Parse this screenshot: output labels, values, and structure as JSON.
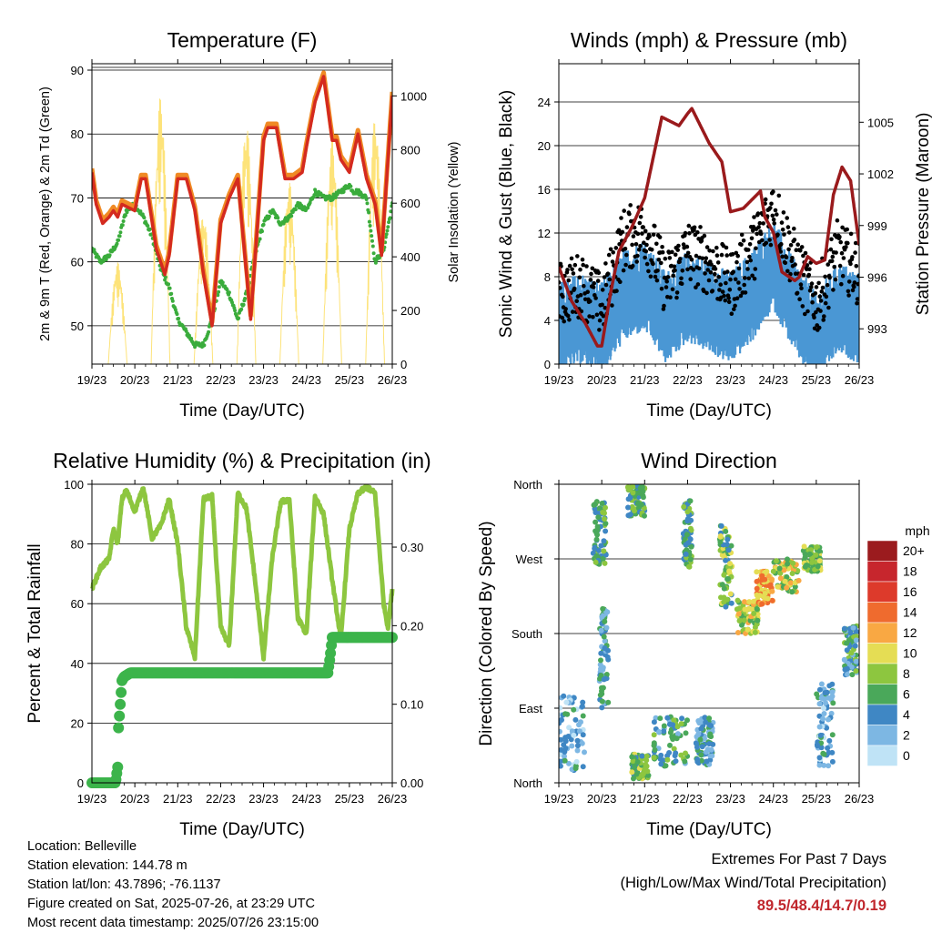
{
  "colors": {
    "temp2m": "#f08a24",
    "temp9m": "#d42a1f",
    "dew": "#3aac3c",
    "solar": "#fde37a",
    "wind": "#4a97d4",
    "gust": "#000000",
    "pressure": "#9a1a1c",
    "rh": "#8dc63f",
    "precip": "#3cb44b",
    "extremes": "#c0272d"
  },
  "chart_data": [
    {
      "type": "line",
      "title": "Temperature (F)",
      "xlabel": "Time (Day/UTC)",
      "ylabel": "2m & 9m T (Red, Orange) & 2m Td (Green)",
      "ylabel_right": "Solar Insolation (Yellow)",
      "x_ticks": [
        "19/23",
        "20/23",
        "21/23",
        "22/23",
        "23/23",
        "24/23",
        "25/23",
        "26/23"
      ],
      "ylim": [
        44,
        91
      ],
      "y_ticks": [
        50,
        60,
        70,
        80,
        90
      ],
      "y2lim": [
        0,
        1120
      ],
      "y2_ticks": [
        0,
        200,
        400,
        600,
        800,
        1000
      ],
      "grid": "horizontal",
      "series": [
        {
          "key": "temp9m",
          "x_days": [
            0,
            0.1,
            0.25,
            0.4,
            0.5,
            0.6,
            0.7,
            1.0,
            1.15,
            1.25,
            1.5,
            1.7,
            1.8,
            2.0,
            2.2,
            2.4,
            2.6,
            2.8,
            3.0,
            3.2,
            3.4,
            3.7,
            4.0,
            4.1,
            4.3,
            4.5,
            4.7,
            4.9,
            5.0,
            5.2,
            5.4,
            5.6,
            5.7,
            5.8,
            6.0,
            6.1,
            6.2,
            6.4,
            6.6,
            6.75,
            7.0
          ],
          "values": [
            74,
            69,
            66,
            67,
            68,
            67,
            69,
            68,
            73,
            73,
            62,
            58,
            61,
            73,
            73,
            68,
            58,
            50,
            66,
            70,
            73,
            51,
            79,
            81,
            81,
            73,
            73,
            74,
            78,
            85,
            89,
            79,
            79,
            76,
            74,
            77,
            80,
            73,
            69,
            61,
            86
          ]
        },
        {
          "key": "dew",
          "x_days": [
            0,
            0.2,
            0.4,
            0.6,
            0.8,
            1.0,
            1.2,
            1.4,
            1.6,
            1.8,
            2.0,
            2.2,
            2.4,
            2.6,
            2.8,
            3.0,
            3.2,
            3.4,
            3.6,
            3.8,
            4.0,
            4.2,
            4.4,
            4.6,
            4.8,
            5.0,
            5.2,
            5.4,
            5.6,
            5.8,
            6.0,
            6.1,
            6.2,
            6.4,
            6.6,
            6.8,
            7.0
          ],
          "values": [
            62,
            60,
            61,
            63,
            68,
            69,
            67,
            64,
            59,
            56,
            51,
            49,
            47,
            47,
            51,
            57,
            55,
            51,
            55,
            61,
            66,
            68,
            66,
            67,
            69,
            68,
            71,
            70,
            70,
            71,
            72,
            71,
            71,
            70,
            60,
            62,
            69
          ]
        },
        {
          "key": "solar",
          "x_days": [
            1.0,
            1.35,
            1.8,
            2.0,
            2.3,
            2.6,
            3.0,
            3.3,
            3.6,
            4.0,
            4.3,
            4.6,
            5.0,
            5.3,
            5.6,
            6.0,
            6.3,
            6.6,
            6.78
          ],
          "values": [
            0,
            600,
            0,
            0,
            1000,
            0,
            0,
            900,
            0,
            0,
            500,
            0,
            0,
            400,
            0,
            0,
            950,
            0,
            600
          ]
        }
      ]
    },
    {
      "type": "line",
      "title": "Winds (mph) & Pressure (mb)",
      "xlabel": "Time (Day/UTC)",
      "ylabel": "Sonic Wind & Gust (Blue, Black)",
      "ylabel_right": "Station Pressure (Maroon)",
      "x_ticks": [
        "19/23",
        "20/23",
        "21/23",
        "22/23",
        "23/23",
        "24/23",
        "25/23",
        "26/23"
      ],
      "ylim": [
        0,
        27.5
      ],
      "y_ticks": [
        0,
        4,
        8,
        12,
        16,
        20,
        24
      ],
      "y2lim": [
        990.95,
        1008.4
      ],
      "y2_ticks": [
        993,
        996,
        999,
        1002,
        1005
      ],
      "grid": "horizontal",
      "series": [
        {
          "key": "wind",
          "x_days": [
            0,
            0.5,
            1.0,
            1.5,
            2.0,
            2.5,
            3.0,
            3.5,
            4.0,
            4.5,
            5.0,
            5.5,
            6.0,
            6.5,
            7.0
          ],
          "values": [
            3,
            4,
            3,
            6,
            7,
            4,
            6,
            5,
            4,
            6,
            9,
            5,
            2,
            5,
            4
          ]
        },
        {
          "key": "gust",
          "x_days": [
            0,
            0.5,
            1.0,
            1.5,
            2.0,
            2.5,
            3.0,
            3.5,
            4.0,
            4.5,
            5.0,
            5.5,
            6.0,
            6.5,
            7.0
          ],
          "values": [
            6,
            7,
            5,
            11,
            12,
            7,
            10,
            9,
            7,
            10,
            14,
            9,
            5,
            10,
            8
          ]
        },
        {
          "key": "pressure",
          "x_days": [
            0,
            0.3,
            0.6,
            0.9,
            1.0,
            1.2,
            1.4,
            1.7,
            2.0,
            2.4,
            2.8,
            3.0,
            3.1,
            3.3,
            3.5,
            3.8,
            4.0,
            4.3,
            4.7,
            4.8,
            5.0,
            5.2,
            5.5,
            5.6,
            5.8,
            6.0,
            6.2,
            6.4,
            6.6,
            6.8,
            7.0
          ],
          "values": [
            996.6,
            994.6,
            993.4,
            992.0,
            992.0,
            995.0,
            997.5,
            998.9,
            1000.6,
            1005.3,
            1004.8,
            1005.5,
            1005.8,
            1004.8,
            1003.8,
            1002.7,
            999.8,
            1000.0,
            1001.0,
            999.5,
            998.6,
            996.3,
            995.8,
            996.0,
            997.2,
            996.8,
            997.0,
            1000.8,
            1002.4,
            1001.6,
            997.9
          ]
        }
      ]
    },
    {
      "type": "line",
      "title": "Relative Humidity (%) & Precipitation (in)",
      "xlabel": "Time (Day/UTC)",
      "ylabel": "Percent & Total Rainfall",
      "x_ticks": [
        "19/23",
        "20/23",
        "21/23",
        "22/23",
        "23/23",
        "24/23",
        "25/23",
        "26/23"
      ],
      "ylim": [
        0,
        100
      ],
      "y_ticks": [
        0,
        20,
        40,
        60,
        80,
        100
      ],
      "y2lim": [
        0,
        0.38
      ],
      "y2_ticks": [
        "0.00",
        "0.10",
        "0.20",
        "0.30"
      ],
      "grid": "horizontal",
      "series": [
        {
          "key": "rh",
          "x_days": [
            0,
            0.2,
            0.4,
            0.5,
            0.6,
            0.7,
            0.8,
            1.0,
            1.2,
            1.4,
            1.6,
            1.8,
            2.0,
            2.2,
            2.4,
            2.6,
            2.8,
            3.0,
            3.2,
            3.4,
            3.6,
            3.8,
            4.0,
            4.2,
            4.4,
            4.6,
            4.8,
            5.0,
            5.2,
            5.4,
            5.6,
            5.8,
            6.0,
            6.2,
            6.4,
            6.6,
            6.8,
            6.9,
            7.0
          ],
          "values": [
            65,
            72,
            75,
            85,
            80,
            95,
            98,
            91,
            99,
            82,
            86,
            95,
            80,
            52,
            42,
            95,
            96,
            52,
            46,
            97,
            92,
            68,
            42,
            75,
            94,
            95,
            55,
            50,
            96,
            90,
            68,
            48,
            85,
            97,
            99,
            97,
            60,
            52,
            65
          ]
        },
        {
          "key": "precip",
          "x_days": [
            0,
            0.55,
            0.6,
            0.62,
            0.66,
            0.7,
            0.75,
            0.9,
            5.5,
            5.55,
            5.6,
            7.0
          ],
          "values": [
            0,
            0,
            0.02,
            0.07,
            0.1,
            0.13,
            0.135,
            0.14,
            0.14,
            0.16,
            0.185,
            0.185
          ]
        }
      ]
    },
    {
      "type": "scatter",
      "title": "Wind Direction",
      "xlabel": "Time (Day/UTC)",
      "ylabel": "Direction (Colored By Speed)",
      "x_ticks": [
        "19/23",
        "20/23",
        "21/23",
        "22/23",
        "23/23",
        "24/23",
        "25/23",
        "26/23"
      ],
      "y_ticks": [
        "North",
        "East",
        "South",
        "West",
        "North"
      ],
      "ylim": [
        0,
        360
      ],
      "grid": "horizontal",
      "legend": {
        "title": "mph",
        "placement": "right",
        "labels": [
          "20+",
          "18",
          "16",
          "14",
          "12",
          "10",
          "8",
          "6",
          "4",
          "2",
          "0"
        ],
        "colors": [
          "#9b1b1e",
          "#c7262d",
          "#dd3a2b",
          "#ef6b2e",
          "#f9a843",
          "#e5dd54",
          "#8dc63f",
          "#4aa85a",
          "#3f87c4",
          "#7db7e3",
          "#bfe3f6"
        ]
      },
      "clusters": [
        {
          "x_center": 0.3,
          "dir_center": 60,
          "spread_x": 0.3,
          "spread_dir": 45,
          "speed": 3
        },
        {
          "x_center": 0.95,
          "dir_center": 300,
          "spread_x": 0.15,
          "spread_dir": 40,
          "speed": 6
        },
        {
          "x_center": 1.05,
          "dir_center": 150,
          "spread_x": 0.1,
          "spread_dir": 60,
          "speed": 4
        },
        {
          "x_center": 1.8,
          "dir_center": 340,
          "spread_x": 0.2,
          "spread_dir": 20,
          "speed": 6
        },
        {
          "x_center": 1.9,
          "dir_center": 20,
          "spread_x": 0.2,
          "spread_dir": 15,
          "speed": 7
        },
        {
          "x_center": 2.6,
          "dir_center": 50,
          "spread_x": 0.4,
          "spread_dir": 30,
          "speed": 5
        },
        {
          "x_center": 3.0,
          "dir_center": 300,
          "spread_x": 0.1,
          "spread_dir": 40,
          "speed": 6
        },
        {
          "x_center": 3.4,
          "dir_center": 50,
          "spread_x": 0.2,
          "spread_dir": 30,
          "speed": 4
        },
        {
          "x_center": 3.9,
          "dir_center": 260,
          "spread_x": 0.15,
          "spread_dir": 50,
          "speed": 7
        },
        {
          "x_center": 4.4,
          "dir_center": 200,
          "spread_x": 0.25,
          "spread_dir": 20,
          "speed": 9
        },
        {
          "x_center": 4.8,
          "dir_center": 235,
          "spread_x": 0.2,
          "spread_dir": 20,
          "speed": 12
        },
        {
          "x_center": 5.3,
          "dir_center": 250,
          "spread_x": 0.3,
          "spread_dir": 20,
          "speed": 9
        },
        {
          "x_center": 5.9,
          "dir_center": 270,
          "spread_x": 0.2,
          "spread_dir": 15,
          "speed": 8
        },
        {
          "x_center": 6.2,
          "dir_center": 70,
          "spread_x": 0.2,
          "spread_dir": 50,
          "speed": 3
        },
        {
          "x_center": 6.8,
          "dir_center": 160,
          "spread_x": 0.15,
          "spread_dir": 30,
          "speed": 5
        }
      ]
    }
  ],
  "info": {
    "location": "Location: Belleville",
    "elevation": "Station elevation: 144.78 m",
    "latlon": "Station lat/lon: 43.7896; -76.1137",
    "created": "Figure created on Sat, 2025-07-26, at 23:29 UTC",
    "recent": "Most recent data timestamp: 2025/07/26 23:15:00"
  },
  "extremes": {
    "title": "Extremes For Past 7 Days",
    "subtitle": "(High/Low/Max Wind/Total Precipitation)",
    "values": "89.5/48.4/14.7/0.19"
  }
}
